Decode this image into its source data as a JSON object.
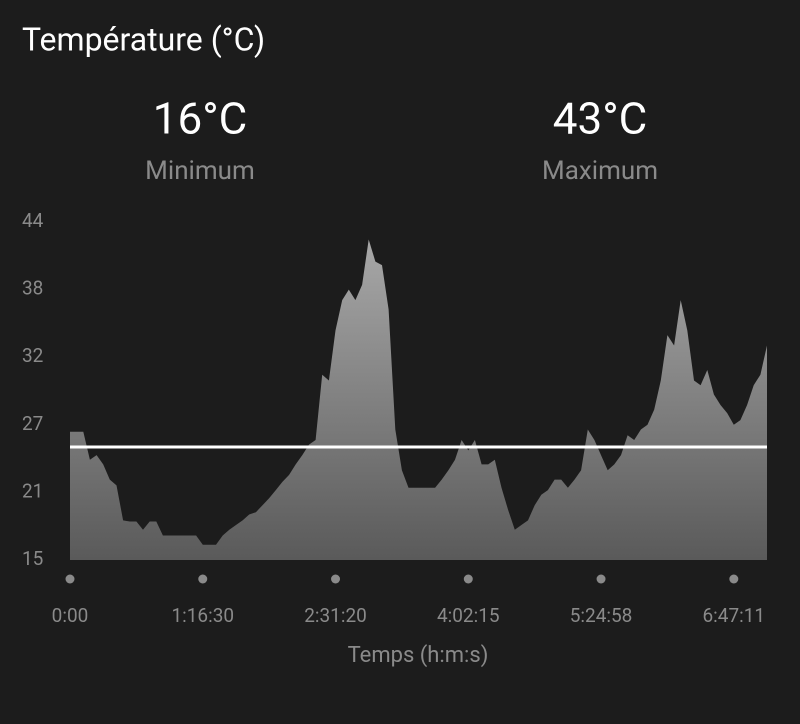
{
  "chart_data": {
    "type": "area",
    "title": "Température (°C)",
    "stats": [
      {
        "value": "16°C",
        "label": "Minimum"
      },
      {
        "value": "43°C",
        "label": "Maximum"
      }
    ],
    "x_label": "Temps (h:m:s)",
    "xlim": [
      0,
      105
    ],
    "xticks": [
      {
        "value": 0,
        "label": "0:00"
      },
      {
        "value": 20,
        "label": "1:16:30"
      },
      {
        "value": 40,
        "label": "2:31:20"
      },
      {
        "value": 60,
        "label": "4:02:15"
      },
      {
        "value": 80,
        "label": "5:24:58"
      },
      {
        "value": 100,
        "label": "6:47:11"
      }
    ],
    "ylim": [
      15,
      44
    ],
    "yticks": [
      15,
      {
        "value": 20.8,
        "label": "21"
      },
      {
        "value": 26.6,
        "label": "27"
      },
      {
        "value": 32.4,
        "label": "32"
      },
      {
        "value": 38.2,
        "label": "38"
      },
      44
    ],
    "reference_line": 24.7,
    "color": "#9a9a9a",
    "values": [
      26.0,
      26.0,
      26.0,
      23.6,
      24.0,
      23.2,
      21.9,
      21.4,
      18.4,
      18.3,
      18.3,
      17.6,
      18.3,
      18.3,
      17.1,
      17.1,
      17.1,
      17.1,
      17.1,
      17.1,
      16.3,
      16.3,
      16.3,
      17.1,
      17.6,
      18.0,
      18.4,
      18.9,
      19.1,
      19.7,
      20.3,
      21.0,
      21.7,
      22.3,
      23.2,
      24.0,
      24.9,
      25.3,
      30.9,
      30.4,
      34.7,
      37.3,
      38.2,
      37.3,
      38.6,
      42.5,
      40.6,
      40.3,
      36.5,
      26.2,
      22.7,
      21.2,
      21.2,
      21.2,
      21.2,
      21.2,
      21.9,
      22.7,
      23.6,
      25.3,
      24.4,
      25.3,
      23.2,
      23.2,
      23.6,
      21.2,
      19.3,
      17.6,
      18.0,
      18.4,
      19.7,
      20.6,
      21.0,
      21.9,
      21.9,
      21.2,
      21.9,
      22.7,
      26.2,
      25.3,
      24.0,
      22.7,
      23.2,
      24.0,
      25.7,
      25.3,
      26.2,
      26.6,
      27.9,
      30.4,
      34.3,
      33.4,
      37.3,
      34.7,
      30.4,
      30.0,
      31.3,
      29.2,
      28.3,
      27.6,
      26.6,
      27.0,
      28.3,
      30.0,
      30.9,
      33.4
    ]
  }
}
